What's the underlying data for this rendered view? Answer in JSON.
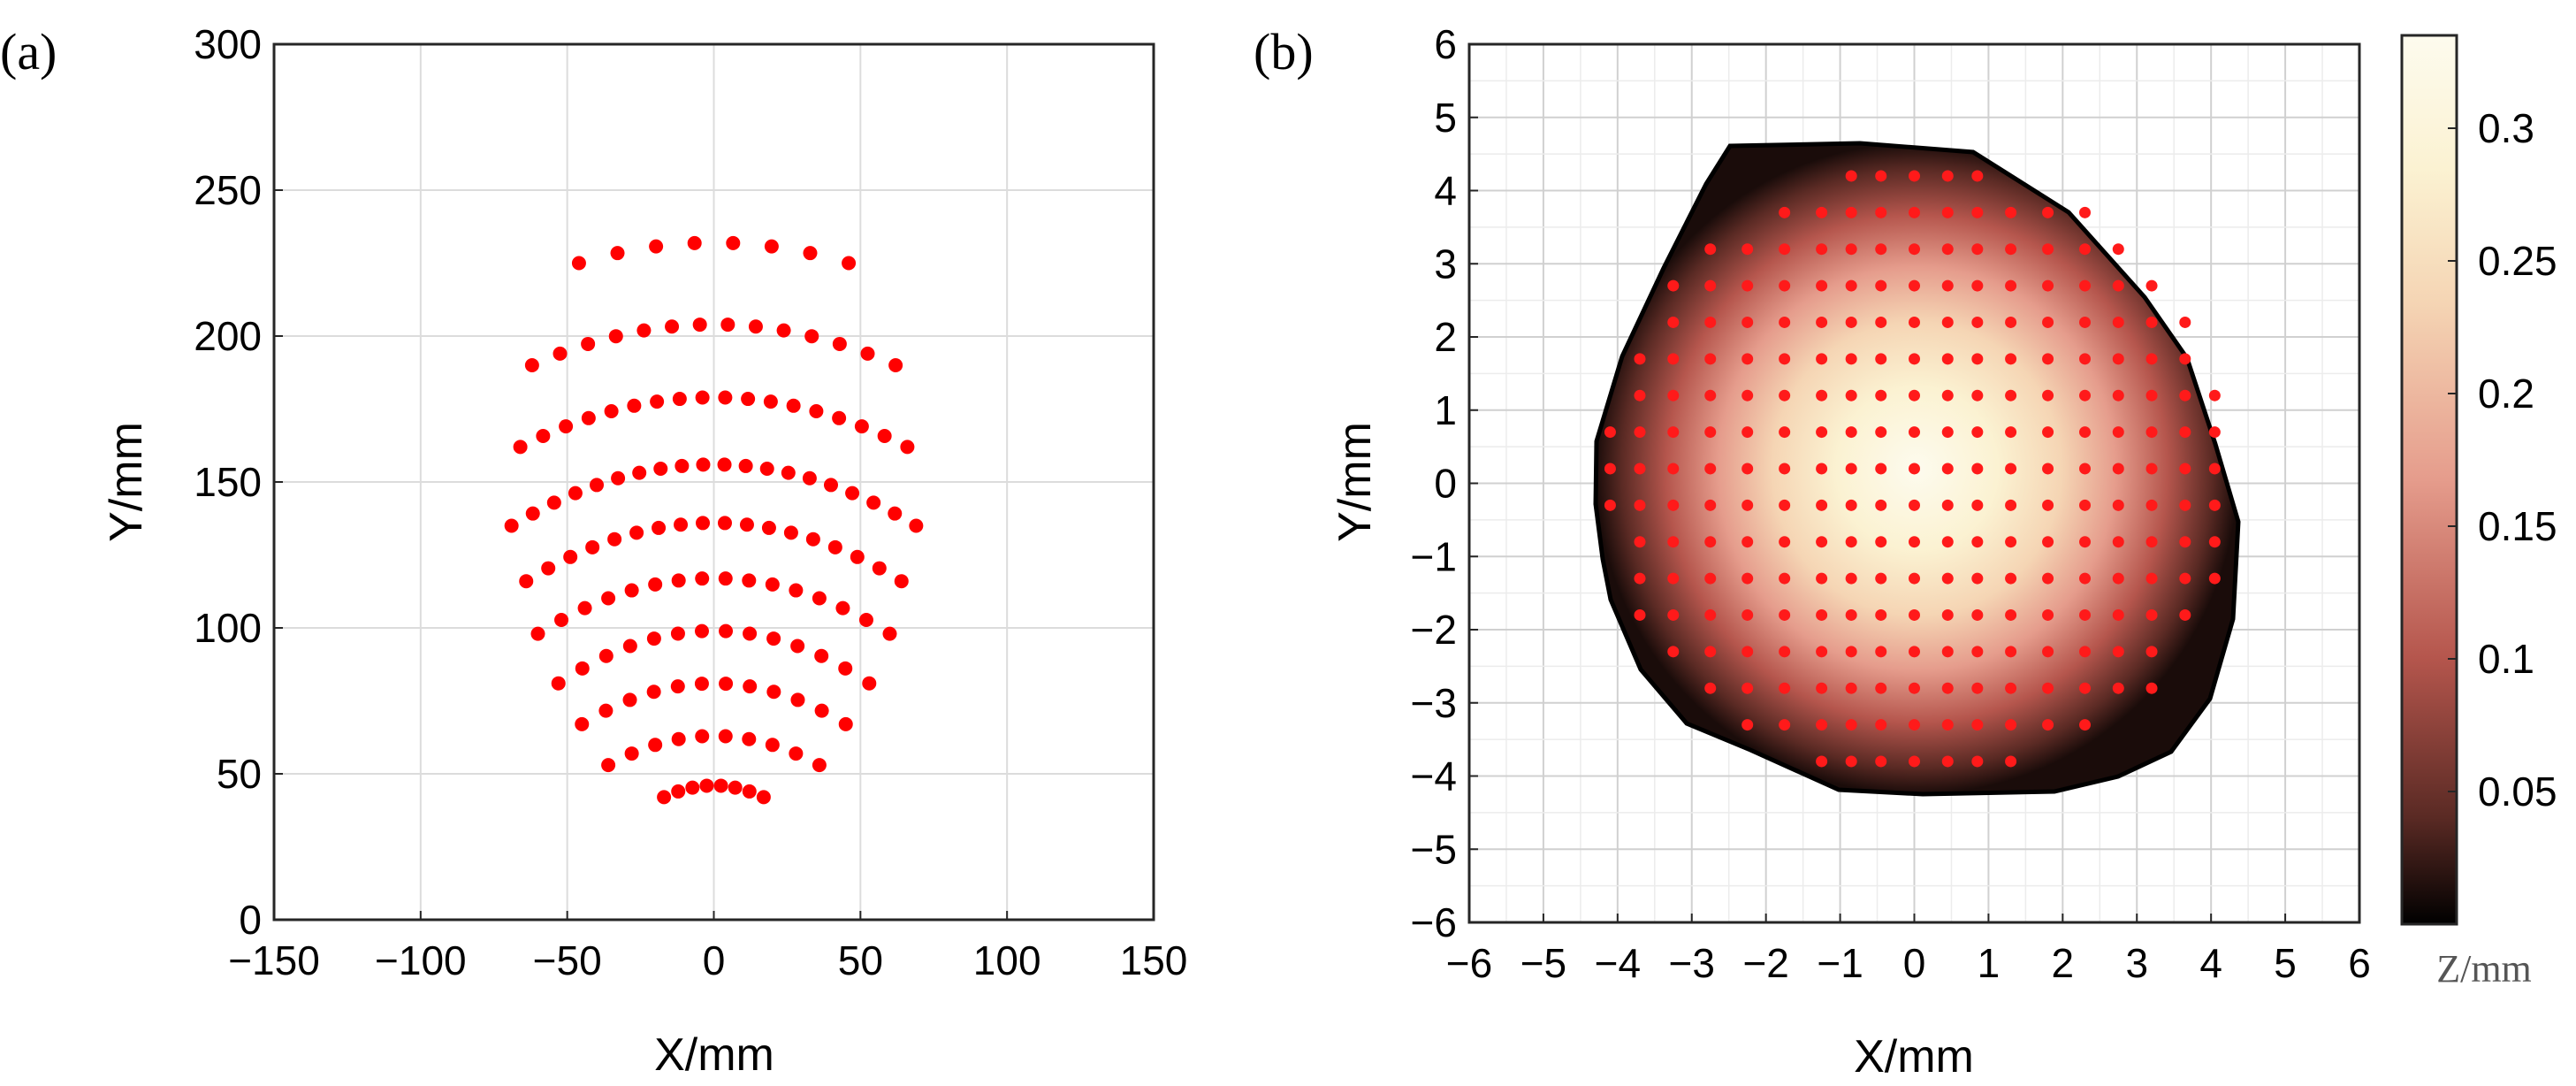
{
  "chart_data": [
    {
      "panel": "(a)",
      "type": "scatter",
      "xlabel": "X/mm",
      "ylabel": "Y/mm",
      "xlim": [
        -150,
        150
      ],
      "ylim": [
        0,
        300
      ],
      "xticks": [
        -150,
        -100,
        -50,
        0,
        50,
        100,
        150
      ],
      "yticks": [
        0,
        50,
        100,
        150,
        200,
        250,
        300
      ],
      "xtick_labels": [
        "−150",
        "−100",
        "−50",
        "0",
        "50",
        "100",
        "150"
      ],
      "ytick_labels": [
        "0",
        "50",
        "100",
        "150",
        "200",
        "250",
        "300"
      ],
      "grid": true,
      "marker_color": "#ff0000",
      "arcs": [
        {
          "apex_y": 46,
          "n": 8,
          "x_half_span": 17,
          "end_drop": 4
        },
        {
          "apex_y": 63,
          "n": 10,
          "x_half_span": 36,
          "end_drop": 10
        },
        {
          "apex_y": 81,
          "n": 12,
          "x_half_span": 45,
          "end_drop": 14
        },
        {
          "apex_y": 99,
          "n": 14,
          "x_half_span": 53,
          "end_drop": 18
        },
        {
          "apex_y": 117,
          "n": 16,
          "x_half_span": 60,
          "end_drop": 19
        },
        {
          "apex_y": 136,
          "n": 18,
          "x_half_span": 64,
          "end_drop": 20
        },
        {
          "apex_y": 156,
          "n": 20,
          "x_half_span": 69,
          "end_drop": 21
        },
        {
          "apex_y": 179,
          "n": 18,
          "x_half_span": 66,
          "end_drop": 17
        },
        {
          "apex_y": 204,
          "n": 14,
          "x_half_span": 62,
          "end_drop": 14
        },
        {
          "apex_y": 232,
          "n": 8,
          "x_half_span": 46,
          "end_drop": 7
        }
      ]
    },
    {
      "panel": "(b)",
      "type": "heatmap",
      "xlabel": "X/mm",
      "ylabel": "Y/mm",
      "xlim": [
        -6,
        6
      ],
      "ylim": [
        -6,
        6
      ],
      "xticks": [
        -6,
        -5,
        -4,
        -3,
        -2,
        -1,
        0,
        1,
        2,
        3,
        4,
        5,
        6
      ],
      "yticks": [
        -6,
        -5,
        -4,
        -3,
        -2,
        -1,
        0,
        1,
        2,
        3,
        4,
        5,
        6
      ],
      "xtick_labels": [
        "−6",
        "−5",
        "−4",
        "−3",
        "−2",
        "−1",
        "0",
        "1",
        "2",
        "3",
        "4",
        "5",
        "6"
      ],
      "ytick_labels": [
        "−6",
        "−5",
        "−4",
        "−3",
        "−2",
        "−1",
        "0",
        "1",
        "2",
        "3",
        "4",
        "5",
        "6"
      ],
      "grid": true,
      "surface": {
        "center": [
          0.1,
          0.1
        ],
        "radius_mm": 4.3,
        "z_max": 0.33
      },
      "marker_color": "#ff1a1a",
      "point_columns_x": [
        -4.1,
        -3.7,
        -3.25,
        -2.75,
        -2.25,
        -1.75,
        -1.25,
        -0.85,
        -0.45,
        0.0,
        0.45,
        0.85,
        1.3,
        1.8,
        2.3,
        2.75,
        3.2,
        3.65,
        4.05
      ],
      "point_rows": {
        "y_top": 4.2,
        "y_bottom": -4.1,
        "row_step": 0.5
      },
      "colorbar": {
        "unit_label": "Z/mm",
        "range": [
          0,
          0.335
        ],
        "ticks": [
          0.05,
          0.1,
          0.15,
          0.2,
          0.25,
          0.3
        ],
        "tick_labels": [
          "0.05",
          "0.1",
          "0.15",
          "0.2",
          "0.25",
          "0.3"
        ],
        "colors": [
          "#000000",
          "#5a2a24",
          "#b5564d",
          "#e59c8c",
          "#f5d5b4",
          "#fbf2d2",
          "#fdfbee"
        ]
      }
    }
  ]
}
